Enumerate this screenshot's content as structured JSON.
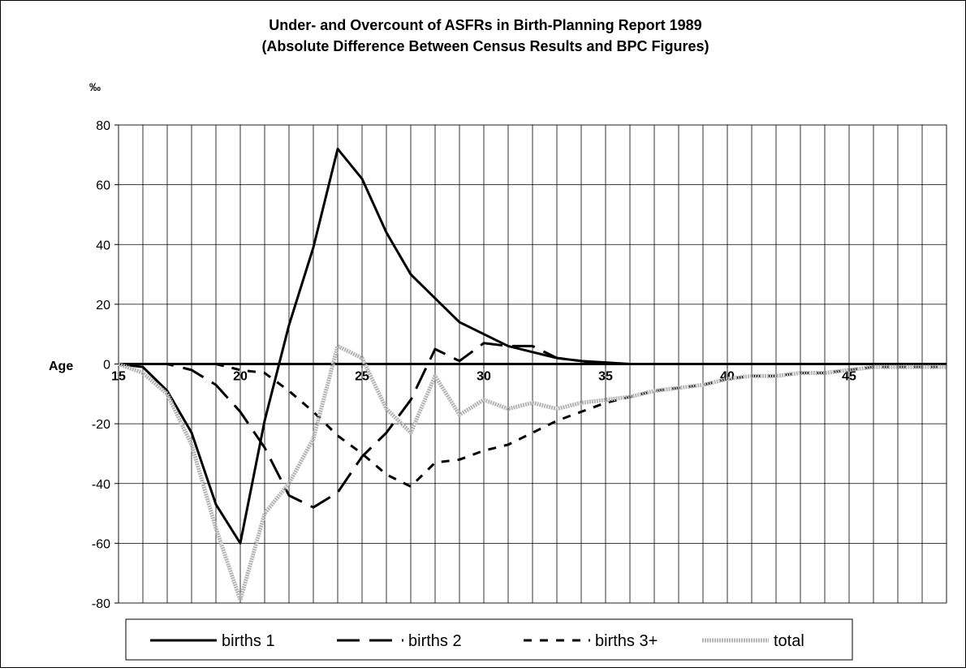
{
  "chart_data": {
    "type": "line",
    "title": "Under- and Overcount of ASFRs in Birth-Planning Report 1989",
    "subtitle": "(Absolute Difference Between Census Results and BPC Figures)",
    "y_label": "‰",
    "x_label": "Age",
    "x": [
      15,
      16,
      17,
      18,
      19,
      20,
      21,
      22,
      23,
      24,
      25,
      26,
      27,
      28,
      29,
      30,
      31,
      32,
      33,
      34,
      35,
      36,
      37,
      38,
      39,
      40,
      41,
      42,
      43,
      44,
      45,
      46,
      47,
      48,
      49
    ],
    "xlim": [
      15,
      49
    ],
    "xticks": [
      15,
      20,
      25,
      30,
      35,
      40,
      45
    ],
    "ylim": [
      -80,
      80
    ],
    "yticks": [
      -80,
      -60,
      -40,
      -20,
      0,
      20,
      40,
      60,
      80
    ],
    "grid": true,
    "legend": "bottom",
    "series": [
      {
        "name": "births 1",
        "color": "#000000",
        "line_style": "solid",
        "values": [
          0,
          -1,
          -9,
          -23,
          -47,
          -60,
          -19,
          13,
          39,
          72,
          62,
          44,
          30,
          22,
          14,
          10,
          6,
          4,
          2,
          1,
          0.5,
          0,
          0,
          0,
          0,
          0,
          0,
          0,
          0,
          0,
          0,
          0,
          0,
          0,
          0
        ]
      },
      {
        "name": "births 2",
        "color": "#000000",
        "line_style": "long-dash",
        "values": [
          0,
          0,
          0,
          -2,
          -7,
          -16,
          -28,
          -44,
          -48,
          -43,
          -31,
          -23,
          -12,
          5,
          1,
          7,
          6,
          6,
          2,
          1,
          0,
          0,
          0,
          0,
          0,
          0,
          0,
          0,
          0,
          0,
          0,
          0,
          0,
          0,
          0
        ]
      },
      {
        "name": "births 3+",
        "color": "#000000",
        "line_style": "short-dash",
        "values": [
          0,
          0,
          0,
          0,
          0,
          -2,
          -3,
          -9,
          -16,
          -24,
          -30,
          -37,
          -41,
          -33,
          -32,
          -29,
          -27,
          -23,
          -19,
          -16,
          -13,
          -11,
          -9,
          -8,
          -7,
          -5,
          -4,
          -4,
          -3,
          -3,
          -2,
          -1,
          -1,
          -1,
          -1
        ]
      },
      {
        "name": "total",
        "color": "#b4b4b4",
        "line_style": "dotted",
        "values": [
          0,
          -3,
          -10,
          -27,
          -55,
          -79,
          -50,
          -40,
          -25,
          6,
          2,
          -15,
          -23,
          -4,
          -17,
          -12,
          -15,
          -13,
          -15,
          -13,
          -12,
          -11,
          -9,
          -8,
          -7,
          -5,
          -4,
          -4,
          -3,
          -3,
          -2,
          -1,
          -1,
          -1,
          -1
        ]
      }
    ]
  }
}
